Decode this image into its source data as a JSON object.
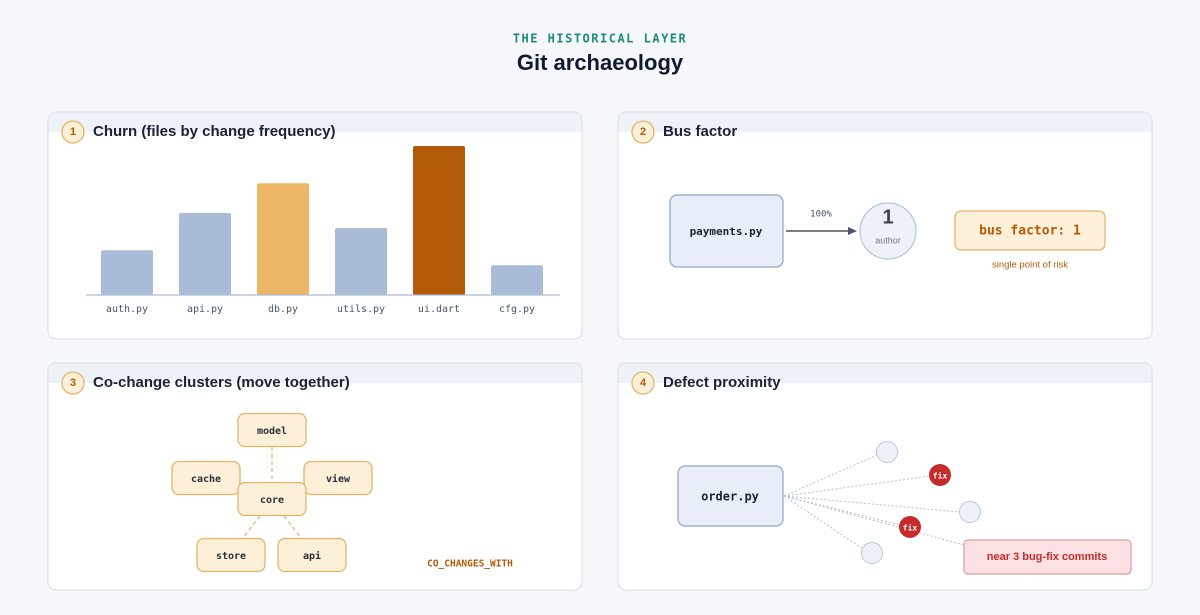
{
  "header": {
    "eyebrow": "THE HISTORICAL LAYER",
    "title": "Git archaeology"
  },
  "panels": [
    {
      "number": 1,
      "title": "Churn (files by change frequency)",
      "chart": {
        "type": "bar",
        "categories": [
          "auth.py",
          "api.py",
          "db.py",
          "utils.py",
          "ui.dart",
          "cfg.py"
        ],
        "values": [
          30,
          55,
          75,
          45,
          100,
          20
        ],
        "colors": [
          "#a9bbd6",
          "#a9bbd6",
          "#edb566",
          "#a9bbd6",
          "#b35a08",
          "#a9bbd6"
        ]
      }
    },
    {
      "number": 2,
      "title": "Bus factor",
      "file": "payments.py",
      "edge_label": "100%",
      "author_count": 1,
      "author_label": "author",
      "badge": "bus factor: 1",
      "note": "single point of risk"
    },
    {
      "number": 3,
      "title": "Co-change clusters (move together)",
      "nodes": [
        "model",
        "cache",
        "view",
        "core",
        "store",
        "api"
      ],
      "legend": "CO_CHANGES_WITH"
    },
    {
      "number": 4,
      "title": "Defect proximity",
      "file": "order.py",
      "fix_labels": [
        "fix",
        "fix"
      ],
      "note": "near 3 bug-fix commits"
    }
  ]
}
